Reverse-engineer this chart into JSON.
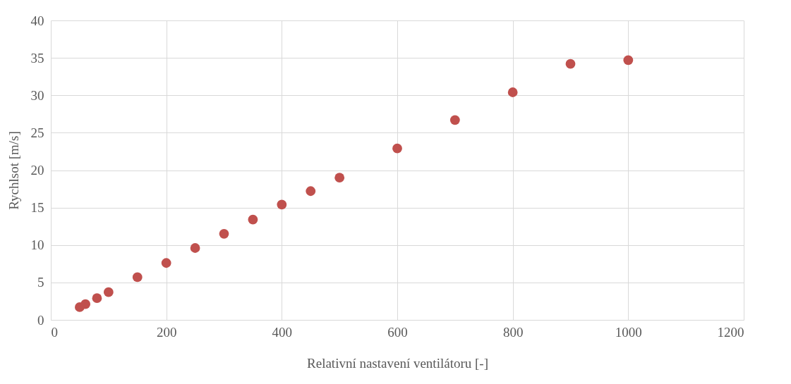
{
  "chart_data": {
    "type": "scatter",
    "xlabel": "Relativní nastavení ventilátoru [-]",
    "ylabel": "Rychlsot [m/s]",
    "x": [
      50,
      60,
      80,
      100,
      150,
      200,
      250,
      300,
      350,
      400,
      450,
      500,
      600,
      700,
      800,
      900,
      1000
    ],
    "series": [
      {
        "color": "#c0504d",
        "values": [
          1.7,
          2.1,
          2.9,
          3.7,
          5.7,
          7.6,
          9.6,
          11.5,
          13.4,
          15.4,
          17.2,
          19.0,
          22.9,
          26.7,
          30.4,
          34.2,
          34.7
        ]
      }
    ],
    "xlim": [
      0,
      1200
    ],
    "xticks": [
      0,
      200,
      400,
      600,
      800,
      1000,
      1200
    ],
    "ylim": [
      0,
      40
    ],
    "yticks": [
      0,
      5,
      10,
      15,
      20,
      25,
      30,
      35,
      40
    ],
    "grid": true,
    "marker": "circle"
  }
}
